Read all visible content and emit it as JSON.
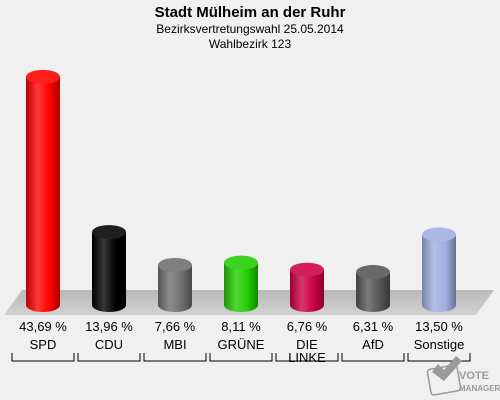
{
  "header": {
    "title": "Stadt Mülheim an der Ruhr",
    "subtitle": "Bezirksvertretungswahl 25.05.2014",
    "district": "Wahlbezirk 123"
  },
  "logo": {
    "line1": "VOTE",
    "line2": "MANAGER"
  },
  "chart_data": {
    "type": "bar",
    "title": "Stadt Mülheim an der Ruhr",
    "subtitle": "Bezirksvertretungswahl 25.05.2014 / Wahlbezirk 123",
    "categories": [
      "SPD",
      "CDU",
      "MBI",
      "GRÜNE",
      "DIE LINKE",
      "AfD",
      "Sonstige"
    ],
    "category_lines": [
      [
        "SPD"
      ],
      [
        "CDU"
      ],
      [
        "MBI"
      ],
      [
        "GRÜNE"
      ],
      [
        "DIE",
        "LINKE"
      ],
      [
        "AfD"
      ],
      [
        "Sonstige"
      ]
    ],
    "values": [
      43.69,
      13.96,
      7.66,
      8.11,
      6.76,
      6.31,
      13.5
    ],
    "value_labels": [
      "43,69 %",
      "13,96 %",
      "7,66 %",
      "8,11 %",
      "6,76 %",
      "6,31 %",
      "13,50 %"
    ],
    "colors": [
      "#ff0000",
      "#000000",
      "#6e6e6e",
      "#22cc00",
      "#cc0044",
      "#555555",
      "#a0aee0"
    ],
    "ylim": [
      0,
      45
    ],
    "grid": false
  }
}
